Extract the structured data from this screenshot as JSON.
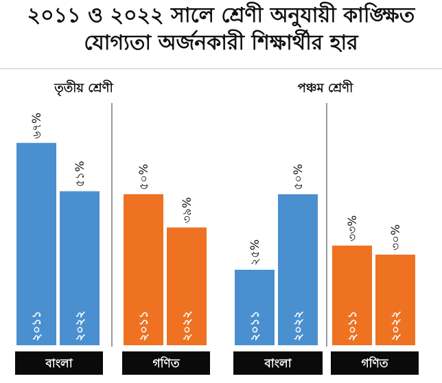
{
  "title_line1": "২০১১ ও ২০২২ সালে শ্রেণী অনুযায়ী কাঙ্ক্ষিত",
  "title_line2": "যোগ্যতা অর্জনকারী শিক্ষার্থীর হার",
  "colors": {
    "bangla": "#4a90d0",
    "math": "#ee7222",
    "catbox": "#0a0a0a",
    "rule": "#bdbdbd",
    "divider": "#333333"
  },
  "chart_data": {
    "type": "bar",
    "ylim": [
      0,
      100
    ],
    "groups": [
      {
        "name": "তৃতীয় শ্রেণী",
        "subjects": [
          {
            "name": "বাংলা",
            "color": "#4a90d0",
            "bars": [
              {
                "year": "২০১১",
                "value": 67,
                "label": "৬৭%"
              },
              {
                "year": "২০২২",
                "value": 51,
                "label": "৫১%"
              }
            ]
          },
          {
            "name": "গণিত",
            "color": "#ee7222",
            "bars": [
              {
                "year": "২০১১",
                "value": 50,
                "label": "৫০%"
              },
              {
                "year": "২০২২",
                "value": 39,
                "label": "৩৯%"
              }
            ]
          }
        ]
      },
      {
        "name": "পঞ্চম শ্রেণী",
        "subjects": [
          {
            "name": "বাংলা",
            "color": "#4a90d0",
            "bars": [
              {
                "year": "২০১১",
                "value": 25,
                "label": "২৫%"
              },
              {
                "year": "২০২২",
                "value": 50,
                "label": "৫০%"
              }
            ]
          },
          {
            "name": "গণিত",
            "color": "#ee7222",
            "bars": [
              {
                "year": "২০১১",
                "value": 33,
                "label": "৩৩%"
              },
              {
                "year": "২০২২",
                "value": 30,
                "label": "৩০%"
              }
            ]
          }
        ]
      }
    ]
  }
}
